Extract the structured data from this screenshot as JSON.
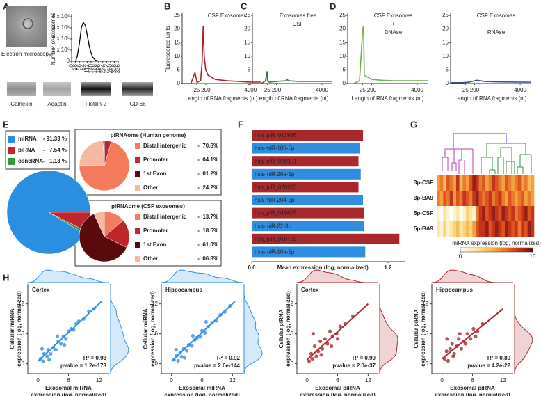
{
  "panel_labels": [
    "A",
    "B",
    "C",
    "D",
    "E",
    "F",
    "G",
    "H"
  ],
  "panel_a": {
    "caption": "Electron microscopy",
    "blots": [
      "Calnexin",
      "Adaptin",
      "Flotilin-2",
      "CD-68"
    ]
  },
  "chart_data": [
    {
      "type": "line",
      "ylabel": "Number of exosomes",
      "x": [
        28,
        40,
        56,
        70,
        84,
        100,
        112,
        130,
        150,
        170,
        196
      ],
      "values": [
        0,
        400000,
        1600000,
        3000000,
        3500000,
        3200000,
        2400000,
        1200000,
        400000,
        100000,
        0
      ],
      "color": "#000000",
      "xlim": [
        0,
        336
      ],
      "xticks": [
        0,
        28,
        56,
        84,
        112,
        140,
        168,
        196,
        224,
        252,
        280,
        308,
        336
      ],
      "ylim": [
        0,
        4000000
      ],
      "yticks": [
        0,
        {
          "value": 1000000,
          "label": "1 x 10⁶"
        },
        {
          "value": 2000000,
          "label": "2 x 10⁶"
        },
        {
          "value": 3000000,
          "label": "3 x 10⁶"
        },
        {
          "value": 4000000,
          "label": "4 x 10⁶"
        }
      ]
    },
    {
      "type": "line",
      "title": [
        "CSF Exosomes"
      ],
      "ylabel": "Fluorescence units",
      "xlabel": "Length of RNA fragments (nt)",
      "x": [
        0,
        15,
        22,
        25,
        28,
        40,
        100,
        130,
        150,
        170,
        200,
        400,
        1000,
        2000,
        4000,
        5000
      ],
      "values": [
        0,
        0,
        4,
        1,
        0.5,
        0.5,
        1,
        8,
        21,
        10,
        5,
        3,
        1.5,
        1,
        0.5,
        0.5
      ],
      "color": "#a3282a",
      "xlim": [
        0,
        5000
      ],
      "xticks": [
        25,
        200,
        4000
      ],
      "ylim": [
        0,
        25
      ],
      "yticks": [
        0,
        5,
        10,
        15,
        20,
        25
      ]
    },
    {
      "type": "line",
      "title": [
        "Exosomes free",
        "CSF"
      ],
      "xlabel": "Length of RNA fragments (nt)",
      "x": [
        0,
        15,
        22,
        25,
        28,
        60,
        200,
        1000,
        1100,
        1200,
        2000,
        4000,
        5000
      ],
      "values": [
        0,
        0,
        1,
        4.5,
        1,
        0.5,
        0.8,
        1,
        1.5,
        1,
        0.8,
        0.8,
        0.8
      ],
      "color": "#3b7a3a",
      "xlim": [
        0,
        5000
      ],
      "xticks": [
        25,
        200,
        4000
      ],
      "ylim": [
        0,
        25
      ],
      "yticks": [
        0,
        5,
        10,
        15,
        20,
        25
      ]
    },
    {
      "type": "line",
      "title": [
        "CSF Exosomes",
        "+",
        "DNAse"
      ],
      "xlabel": "Length of RNA fragments (nt)",
      "x": [
        0,
        10,
        20,
        30,
        45,
        60,
        200,
        1000,
        2000,
        4000,
        5000
      ],
      "values": [
        0,
        0,
        1,
        20,
        21,
        3,
        1.5,
        1.2,
        1,
        1,
        1
      ],
      "color": "#6fb04a",
      "xlim": [
        0,
        5000
      ],
      "xticks": [
        25,
        200,
        4000
      ],
      "ylim": [
        0,
        25
      ],
      "yticks": [
        0,
        5,
        10,
        15,
        20,
        25
      ]
    },
    {
      "type": "line",
      "title": [
        "CSF Exosomes",
        "+",
        "RNAse"
      ],
      "xlabel": "Length of RNA fragments (nt)",
      "x": [
        0,
        20,
        100,
        200,
        400,
        1000,
        2000,
        4000,
        5000
      ],
      "values": [
        0.3,
        0.3,
        0.5,
        1,
        1.2,
        0.8,
        0.6,
        0.5,
        0.5
      ],
      "color": "#3a4a9a",
      "xlim": [
        0,
        5000
      ],
      "xticks": [
        25,
        200,
        4000
      ],
      "ylim": [
        0,
        25
      ],
      "yticks": [
        0,
        5,
        10,
        15,
        20,
        25
      ]
    },
    {
      "type": "pie",
      "categories": [
        "miRNA",
        "piRNA",
        "osncRNA"
      ],
      "values": [
        91.33,
        7.54,
        1.13
      ],
      "value_labels": [
        "- 91.33 %",
        "-   7.54 %",
        "-   1.13 %"
      ],
      "colors": [
        "#2a8fe0",
        "#c0272d",
        "#2e9a3a"
      ]
    },
    {
      "type": "pie",
      "title": "piRNAome (Human genome)",
      "categories": [
        "Distal intergenic",
        "Promoter",
        "1st Exon",
        "Other"
      ],
      "values": [
        70.6,
        4.1,
        1.2,
        24.2
      ],
      "value_labels": [
        "-  70.6%",
        "-  04.1%",
        "-  01.2%",
        "-  24.2%"
      ],
      "colors": [
        "#f47c5c",
        "#c0272d",
        "#5a0a0a",
        "#f5b9a0"
      ]
    },
    {
      "type": "pie",
      "title": "piRNAome (CSF exosomes)",
      "categories": [
        "Distal intergenic",
        "Promoter",
        "1st Exon",
        "Other"
      ],
      "values": [
        13.7,
        18.5,
        61.0,
        6.8
      ],
      "value_labels": [
        "-  13.7%",
        "-  18.5%",
        "-  61.0%",
        "-  06.8%"
      ],
      "colors": [
        "#f47c5c",
        "#c0272d",
        "#5a0a0a",
        "#f5b9a0"
      ]
    },
    {
      "type": "bar",
      "orientation": "horizontal",
      "categories": [
        "hsa_piR_017936",
        "hsa-miR-100-5p",
        "hsa_piR_020381",
        "hsa-miR-26a-5p",
        "hsa_piR_020365",
        "hsa-miR-204-5p",
        "hsa_piR_019675",
        "hsa-miR-22-3p",
        "hsa_piR_016735",
        "hsa-miR-10a-5p"
      ],
      "values": [
        0.98,
        0.95,
        0.94,
        0.96,
        0.94,
        0.98,
        0.99,
        0.99,
        1.3,
        1.0
      ],
      "colors": [
        "#a8282c",
        "#2f8ee0",
        "#a8282c",
        "#2f8ee0",
        "#a8282c",
        "#2f8ee0",
        "#a8282c",
        "#2f8ee0",
        "#a8282c",
        "#2f8ee0"
      ],
      "xlabel": "Mean expression (log, normalized)",
      "xlim": [
        0,
        1.35
      ],
      "xticks": [
        {
          "value": 0,
          "label": "0.0"
        },
        1.2
      ]
    },
    {
      "type": "heatmap",
      "rows": [
        "3p-CSF",
        "3p-BA9",
        "5p-CSF",
        "5p-BA9"
      ],
      "values": [
        [
          5,
          6,
          4,
          7,
          6,
          5,
          8,
          4,
          6,
          5,
          7,
          9,
          8,
          6,
          7,
          5,
          6,
          8,
          7,
          6,
          5,
          7,
          6,
          5,
          6,
          7,
          5,
          6,
          4,
          5
        ],
        [
          6,
          5,
          7,
          6,
          8,
          5,
          7,
          6,
          8,
          7,
          6,
          8,
          9,
          7,
          6,
          7,
          8,
          6,
          7,
          8,
          6,
          5,
          7,
          6,
          5,
          6,
          7,
          5,
          6,
          5
        ],
        [
          1,
          0,
          2,
          1,
          0,
          1,
          2,
          0,
          1,
          3,
          2,
          1,
          6,
          8,
          9,
          7,
          8,
          9,
          8,
          7,
          9,
          8,
          7,
          8,
          6,
          7,
          8,
          9,
          7,
          8
        ],
        [
          2,
          1,
          3,
          1,
          2,
          3,
          4,
          2,
          3,
          4,
          3,
          5,
          7,
          8,
          8,
          9,
          7,
          8,
          9,
          8,
          7,
          9,
          8,
          7,
          8,
          6,
          8,
          7,
          9,
          8
        ]
      ],
      "colorscale": [
        "#ffffff",
        "#fde08a",
        "#f5a03a",
        "#d8401c",
        "#6a0a10"
      ],
      "clim": [
        0,
        10
      ],
      "colorbar_label": "miRNA expression (log, normalized)",
      "colorbar_ticks": [
        0,
        10
      ]
    },
    {
      "type": "scatter",
      "title": "Cortex",
      "xlabel": [
        "Exosomal miRNA",
        "expression (log, normalized)"
      ],
      "ylabel": [
        "Cellular miRNA",
        "expression (log, normalized)"
      ],
      "annotations": [
        "R² = 0.93",
        "pvalue = 1.2e-173"
      ],
      "x": [
        0.5,
        1,
        1.2,
        1.8,
        2,
        2.5,
        3,
        3.5,
        4,
        4.5,
        5,
        5.5,
        6,
        6.5,
        7,
        8,
        9,
        10,
        11,
        0.8,
        2.2,
        3.8,
        5.2,
        7.5
      ],
      "values": [
        1,
        0.5,
        2,
        1.5,
        2.8,
        2,
        3.2,
        2.8,
        4.5,
        4,
        5.5,
        5,
        6.5,
        7,
        6.8,
        8.5,
        9,
        10.5,
        11,
        3,
        0.8,
        5.5,
        3.8,
        8
      ],
      "fit_x": [
        0,
        12.5
      ],
      "fit_y": [
        0.5,
        12.5
      ],
      "color": "#2e8fe6",
      "xlim": [
        -2,
        14
      ],
      "xticks": [
        0,
        6,
        12
      ],
      "ylim": [
        -2,
        16
      ],
      "yticks": [
        0,
        6,
        12
      ]
    },
    {
      "type": "scatter",
      "title": "Hippocampus",
      "xlabel": [
        "Exosomal miRNA",
        "expression (log, normalized)"
      ],
      "ylabel": [
        "Cellular miRNA",
        "expression (log, normalized)"
      ],
      "annotations": [
        "R² = 0.92",
        "pvalue = 2.0e-144"
      ],
      "x": [
        0.5,
        1,
        1.3,
        1.7,
        2,
        2.4,
        3,
        3.4,
        4,
        4.6,
        5,
        5.6,
        6,
        6.6,
        7.2,
        8,
        8.8,
        9.6,
        10.5,
        11.5,
        0.9,
        2.6,
        4.2,
        6.8
      ],
      "values": [
        0.8,
        1.6,
        0.6,
        2.2,
        1.4,
        3,
        2.6,
        3.8,
        3.6,
        4.8,
        5.2,
        5.4,
        6.6,
        6.2,
        7.4,
        8.2,
        8.6,
        9.8,
        10.4,
        11.6,
        2.8,
        1.2,
        5.6,
        8.4
      ],
      "fit_x": [
        0,
        12.5
      ],
      "fit_y": [
        0.5,
        12.5
      ],
      "color": "#2e8fe6",
      "xlim": [
        -2,
        14
      ],
      "xticks": [
        0,
        6,
        12
      ],
      "ylim": [
        -2,
        16
      ],
      "yticks": [
        0,
        6,
        12
      ]
    },
    {
      "type": "scatter",
      "title": "Cortex",
      "xlabel": [
        "Exosomal piRNA",
        "expression (log, normalized)"
      ],
      "ylabel": [
        "Cellular piRNA",
        "expression (log, normalized)"
      ],
      "annotations": [
        "R² = 0.90",
        "pvalue = 2.0e-37"
      ],
      "x": [
        0.4,
        0.8,
        1,
        1.5,
        1.8,
        2.2,
        2.6,
        3,
        3.5,
        4,
        4.5,
        5,
        5.8,
        6.5,
        7.5,
        9,
        1.2,
        2.8,
        4.8,
        6
      ],
      "values": [
        0.5,
        2,
        1,
        3.5,
        1.5,
        2.5,
        4.5,
        3,
        5,
        4,
        6.5,
        5.5,
        6,
        7.5,
        8,
        9.5,
        6,
        1.8,
        3.5,
        5
      ],
      "fit_x": [
        0,
        12
      ],
      "fit_y": [
        0.8,
        12
      ],
      "color": "#a8282c",
      "xlim": [
        -2,
        14
      ],
      "xticks": [
        0,
        6,
        12
      ],
      "ylim": [
        -2,
        16
      ],
      "yticks": [
        0,
        6,
        12
      ]
    },
    {
      "type": "scatter",
      "title": "Hippocampus",
      "xlabel": [
        "Exosomal piRNA",
        "expression (log, normalized)"
      ],
      "ylabel": [
        "Cellular piRNA",
        "expression (log, normalized)"
      ],
      "annotations": [
        "R² = 0.80",
        "pvalue = 4.2e-22"
      ],
      "x": [
        0.5,
        0.9,
        1.2,
        1.6,
        2,
        2.4,
        2.9,
        3.3,
        3.8,
        4.3,
        5,
        5.6,
        6.2,
        7,
        8,
        1,
        2.2,
        3.5,
        4.6,
        6.6
      ],
      "values": [
        1,
        2.5,
        0.6,
        3,
        4,
        2,
        3.5,
        5,
        3,
        4.5,
        6,
        5,
        7,
        6.5,
        8,
        5,
        1.5,
        6,
        4,
        5.5
      ],
      "fit_x": [
        0,
        12
      ],
      "fit_y": [
        1,
        11
      ],
      "color": "#a8282c",
      "xlim": [
        -2,
        14
      ],
      "xticks": [
        0,
        6,
        12
      ],
      "ylim": [
        -2,
        16
      ],
      "yticks": [
        0,
        6,
        12
      ]
    }
  ]
}
